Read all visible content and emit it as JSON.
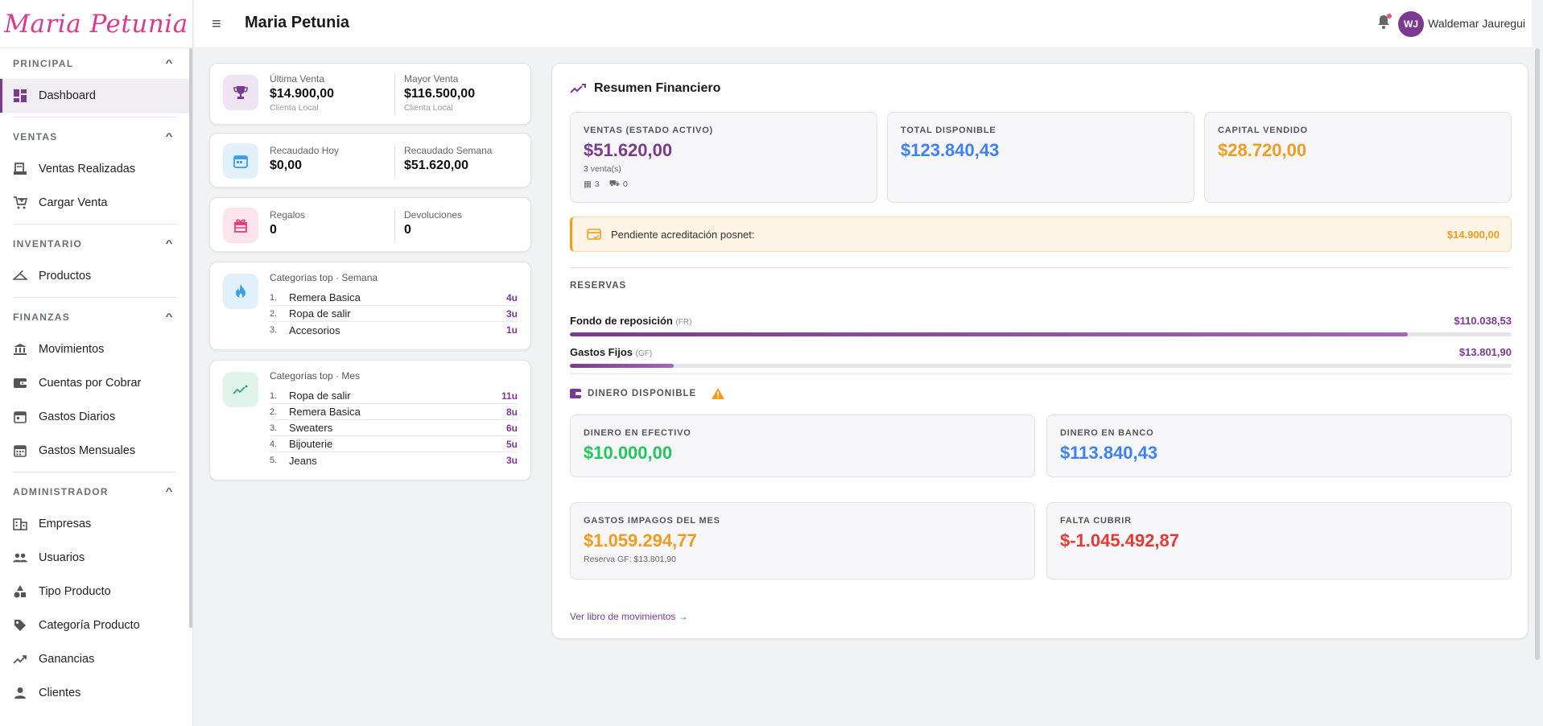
{
  "app": {
    "logo": "Maria Petunia",
    "title": "Maria Petunia"
  },
  "user": {
    "initials": "WJ",
    "name": "Waldemar Jauregui"
  },
  "sidebar": {
    "sections": [
      {
        "title": "PRINCIPAL",
        "items": [
          {
            "label": "Dashboard",
            "icon": "dashboard-icon",
            "active": true
          }
        ]
      },
      {
        "title": "VENTAS",
        "items": [
          {
            "label": "Ventas Realizadas",
            "icon": "receipt-icon"
          },
          {
            "label": "Cargar Venta",
            "icon": "cart-add-icon"
          }
        ]
      },
      {
        "title": "INVENTARIO",
        "items": [
          {
            "label": "Productos",
            "icon": "hanger-icon"
          }
        ]
      },
      {
        "title": "FINANZAS",
        "items": [
          {
            "label": "Movimientos",
            "icon": "bank-icon"
          },
          {
            "label": "Cuentas por Cobrar",
            "icon": "wallet-icon"
          },
          {
            "label": "Gastos Diarios",
            "icon": "calendar-day-icon"
          },
          {
            "label": "Gastos Mensuales",
            "icon": "calendar-month-icon"
          }
        ]
      },
      {
        "title": "ADMINISTRADOR",
        "items": [
          {
            "label": "Empresas",
            "icon": "building-icon"
          },
          {
            "label": "Usuarios",
            "icon": "users-icon"
          },
          {
            "label": "Tipo Producto",
            "icon": "shapes-icon"
          },
          {
            "label": "Categoría Producto",
            "icon": "tag-icon"
          },
          {
            "label": "Ganancias",
            "icon": "trending-up-icon"
          },
          {
            "label": "Clientes",
            "icon": "person-icon"
          }
        ]
      }
    ]
  },
  "cards": {
    "sales": {
      "left_label": "Última Venta",
      "left_value": "$14.900,00",
      "left_sub": "Clienta Local",
      "right_label": "Mayor Venta",
      "right_value": "$116.500,00",
      "right_sub": "Clienta Local",
      "icon": "trophy-icon"
    },
    "collected": {
      "left_label": "Recaudado Hoy",
      "left_value": "$0,00",
      "right_label": "Recaudado Semana",
      "right_value": "$51.620,00",
      "icon": "calendar-icon"
    },
    "gifts": {
      "left_label": "Regalos",
      "left_value": "0",
      "right_label": "Devoluciones",
      "right_value": "0",
      "icon": "gift-icon"
    },
    "top_week": {
      "title": "Categorías top · Semana",
      "icon": "fire-icon",
      "items": [
        {
          "rank": "1.",
          "name": "Remera Basica",
          "qty": "4u"
        },
        {
          "rank": "2.",
          "name": "Ropa de salir",
          "qty": "3u"
        },
        {
          "rank": "3.",
          "name": "Accesorios",
          "qty": "1u"
        }
      ]
    },
    "top_month": {
      "title": "Categorías top · Mes",
      "icon": "trend-icon",
      "items": [
        {
          "rank": "1.",
          "name": "Ropa de salir",
          "qty": "11u"
        },
        {
          "rank": "2.",
          "name": "Remera Basica",
          "qty": "8u"
        },
        {
          "rank": "3.",
          "name": "Sweaters",
          "qty": "6u"
        },
        {
          "rank": "4.",
          "name": "Bijouterie",
          "qty": "5u"
        },
        {
          "rank": "5.",
          "name": "Jeans",
          "qty": "3u"
        }
      ]
    }
  },
  "finance": {
    "title": "Resumen Financiero",
    "ventas": {
      "label": "VENTAS (ESTADO ACTIVO)",
      "value": "$51.620,00",
      "count": "3 venta(s)",
      "store": "3",
      "online": "0"
    },
    "total": {
      "label": "TOTAL DISPONIBLE",
      "value": "$123.840,43"
    },
    "capital": {
      "label": "CAPITAL VENDIDO",
      "value": "$28.720,00"
    },
    "pending": {
      "label": "Pendiente acreditación posnet:",
      "value": "$14.900,00"
    },
    "reservas": {
      "title": "RESERVAS",
      "fondo": {
        "name": "Fondo de reposición",
        "code": "(FR)",
        "value": "$110.038,53",
        "pct": 89
      },
      "gastos": {
        "name": "Gastos Fijos",
        "code": "(GF)",
        "value": "$13.801,90",
        "pct": 11
      }
    },
    "disponible": {
      "title": "DINERO DISPONIBLE"
    },
    "efectivo": {
      "label": "DINERO EN EFECTIVO",
      "value": "$10.000,00"
    },
    "banco": {
      "label": "DINERO EN BANCO",
      "value": "$113.840,43"
    },
    "impagos": {
      "label": "GASTOS IMPAGOS DEL MES",
      "value": "$1.059.294,77",
      "sub": "Reserva GF: $13.801,90"
    },
    "falta": {
      "label": "FALTA CUBRIR",
      "value": "$-1.045.492,87"
    },
    "link": "Ver libro de movimientos →"
  },
  "colors": {
    "brand": "#7b3a90",
    "blue": "#3b82f6",
    "orange": "#f29b1d",
    "green": "#22c55e",
    "red": "#e53935",
    "logo": "#d93a8e"
  }
}
